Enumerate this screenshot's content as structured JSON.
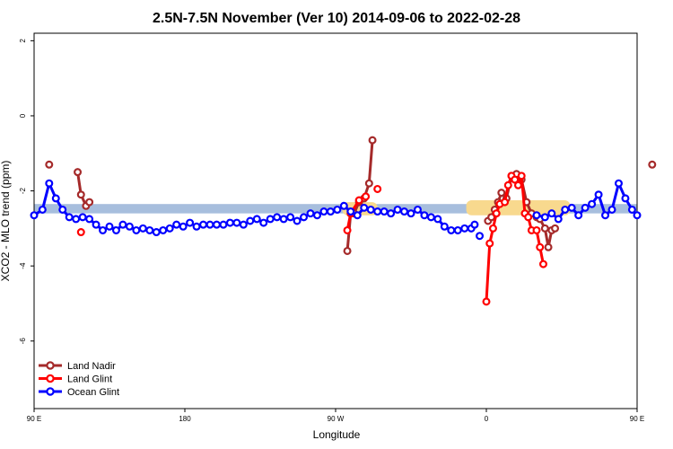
{
  "chart_data": {
    "type": "line",
    "title": "2.5N-7.5N November (Ver 10)   2014-09-06 to 2022-02-28",
    "xlabel": "Longitude",
    "ylabel": "XCO2 - MLO trend (ppm)",
    "xlim": [
      90,
      450
    ],
    "ylim": [
      -7.8,
      2.2
    ],
    "xticks": [
      {
        "value": 90,
        "label": "90 E"
      },
      {
        "value": 180,
        "label": "180"
      },
      {
        "value": 270,
        "label": "90 W"
      },
      {
        "value": 360,
        "label": "0"
      },
      {
        "value": 450,
        "label": "90 E"
      },
      {
        "value": 540,
        "label": "180"
      }
    ],
    "yticks": [
      {
        "value": 2,
        "label": "2"
      },
      {
        "value": 0,
        "label": "0"
      },
      {
        "value": -2,
        "label": "-2"
      },
      {
        "value": -4,
        "label": "-4"
      },
      {
        "value": -6,
        "label": "-6"
      }
    ],
    "grid": false,
    "legend_position": "bottom-left",
    "bands": [
      {
        "name": "reference band",
        "color": "#a7bedd",
        "x": [
          90,
          540
        ],
        "y": [
          -2.6,
          -2.35
        ]
      },
      {
        "name": "land band 1",
        "color": "#f8d98e",
        "x": [
          274,
          295
        ],
        "y": [
          -2.65,
          -2.3
        ]
      },
      {
        "name": "land band 2",
        "color": "#f8d98e",
        "x": [
          348,
          410
        ],
        "y": [
          -2.65,
          -2.25
        ]
      }
    ],
    "series": [
      {
        "name": "Land Nadir",
        "color": "#a52a2a",
        "segments": [
          [
            [
              99,
              -1.3
            ]
          ],
          [
            [
              116,
              -1.5
            ],
            [
              118,
              -2.1
            ],
            [
              121,
              -2.4
            ],
            [
              123,
              -2.3
            ]
          ],
          [
            [
              277,
              -3.6
            ],
            [
              279,
              -2.6
            ],
            [
              281,
              -2.6
            ],
            [
              284,
              -2.3
            ],
            [
              287,
              -2.2
            ],
            [
              290,
              -1.8
            ],
            [
              292,
              -0.65
            ]
          ],
          [
            [
              361,
              -2.8
            ],
            [
              363,
              -2.7
            ],
            [
              365,
              -2.5
            ],
            [
              367,
              -2.3
            ],
            [
              369,
              -2.05
            ],
            [
              372,
              -2.2
            ],
            [
              375,
              -1.6
            ],
            [
              378,
              -1.55
            ],
            [
              381,
              -1.7
            ],
            [
              384,
              -2.3
            ],
            [
              387,
              -2.6
            ],
            [
              390,
              -2.7
            ],
            [
              392,
              -2.75
            ],
            [
              395,
              -3.0
            ],
            [
              397,
              -3.5
            ],
            [
              399,
              -3.05
            ],
            [
              401,
              -3.0
            ]
          ],
          [
            [
              459,
              -1.3
            ]
          ],
          [
            [
              476,
              -1.5
            ],
            [
              478,
              -2.1
            ],
            [
              481,
              -2.4
            ],
            [
              483,
              -2.3
            ]
          ]
        ]
      },
      {
        "name": "Land Glint",
        "color": "#ff0000",
        "segments": [
          [
            [
              118,
              -3.1
            ]
          ],
          [
            [
              277,
              -3.05
            ],
            [
              279,
              -2.6
            ],
            [
              284,
              -2.25
            ],
            [
              288,
              -2.15
            ]
          ],
          [
            [
              295,
              -1.95
            ]
          ],
          [
            [
              360,
              -4.95
            ],
            [
              362,
              -3.4
            ],
            [
              364,
              -3.0
            ],
            [
              366,
              -2.6
            ],
            [
              368,
              -2.35
            ],
            [
              371,
              -2.3
            ],
            [
              373,
              -1.85
            ],
            [
              375,
              -1.6
            ],
            [
              377,
              -1.7
            ],
            [
              379,
              -1.85
            ],
            [
              381,
              -1.6
            ],
            [
              383,
              -2.6
            ],
            [
              385,
              -2.7
            ],
            [
              387,
              -3.05
            ],
            [
              390,
              -3.05
            ],
            [
              392,
              -3.5
            ],
            [
              394,
              -3.95
            ]
          ],
          [
            [
              478,
              -3.1
            ]
          ]
        ]
      },
      {
        "name": "Ocean Glint",
        "color": "#0000ff",
        "segments": [
          [
            [
              90,
              -2.65
            ],
            [
              95,
              -2.5
            ],
            [
              99,
              -1.8
            ],
            [
              103,
              -2.2
            ],
            [
              107,
              -2.5
            ],
            [
              111,
              -2.7
            ],
            [
              115,
              -2.75
            ],
            [
              119,
              -2.7
            ],
            [
              123,
              -2.75
            ],
            [
              127,
              -2.9
            ],
            [
              131,
              -3.05
            ],
            [
              135,
              -2.95
            ],
            [
              139,
              -3.05
            ],
            [
              143,
              -2.9
            ],
            [
              147,
              -2.95
            ],
            [
              151,
              -3.05
            ],
            [
              155,
              -3.0
            ],
            [
              159,
              -3.05
            ],
            [
              163,
              -3.1
            ],
            [
              167,
              -3.05
            ],
            [
              171,
              -3.0
            ],
            [
              175,
              -2.9
            ],
            [
              179,
              -2.95
            ],
            [
              183,
              -2.85
            ],
            [
              187,
              -2.95
            ],
            [
              191,
              -2.9
            ],
            [
              195,
              -2.9
            ],
            [
              199,
              -2.9
            ],
            [
              203,
              -2.9
            ],
            [
              207,
              -2.85
            ],
            [
              211,
              -2.85
            ],
            [
              215,
              -2.9
            ],
            [
              219,
              -2.8
            ],
            [
              223,
              -2.75
            ],
            [
              227,
              -2.85
            ],
            [
              231,
              -2.75
            ],
            [
              235,
              -2.7
            ],
            [
              239,
              -2.75
            ],
            [
              243,
              -2.7
            ],
            [
              247,
              -2.8
            ],
            [
              251,
              -2.7
            ],
            [
              255,
              -2.6
            ],
            [
              259,
              -2.65
            ],
            [
              263,
              -2.55
            ],
            [
              267,
              -2.55
            ],
            [
              271,
              -2.5
            ],
            [
              275,
              -2.4
            ],
            [
              279,
              -2.55
            ],
            [
              283,
              -2.65
            ],
            [
              287,
              -2.45
            ],
            [
              291,
              -2.5
            ],
            [
              295,
              -2.55
            ],
            [
              299,
              -2.55
            ],
            [
              303,
              -2.6
            ],
            [
              307,
              -2.5
            ],
            [
              311,
              -2.55
            ],
            [
              315,
              -2.6
            ],
            [
              319,
              -2.5
            ],
            [
              323,
              -2.65
            ],
            [
              327,
              -2.7
            ],
            [
              331,
              -2.75
            ],
            [
              335,
              -2.95
            ],
            [
              339,
              -3.05
            ],
            [
              343,
              -3.05
            ],
            [
              347,
              -3.0
            ],
            [
              351,
              -3.0
            ],
            [
              353,
              -2.9
            ]
          ],
          [
            [
              356,
              -3.2
            ]
          ],
          [
            [
              390,
              -2.65
            ],
            [
              395,
              -2.7
            ],
            [
              399,
              -2.6
            ],
            [
              403,
              -2.75
            ],
            [
              407,
              -2.5
            ],
            [
              411,
              -2.45
            ],
            [
              415,
              -2.65
            ],
            [
              419,
              -2.45
            ],
            [
              423,
              -2.35
            ],
            [
              427,
              -2.1
            ],
            [
              431,
              -2.65
            ],
            [
              435,
              -2.5
            ],
            [
              439,
              -1.8
            ],
            [
              443,
              -2.2
            ],
            [
              447,
              -2.5
            ],
            [
              450,
              -2.65
            ]
          ]
        ]
      }
    ]
  }
}
